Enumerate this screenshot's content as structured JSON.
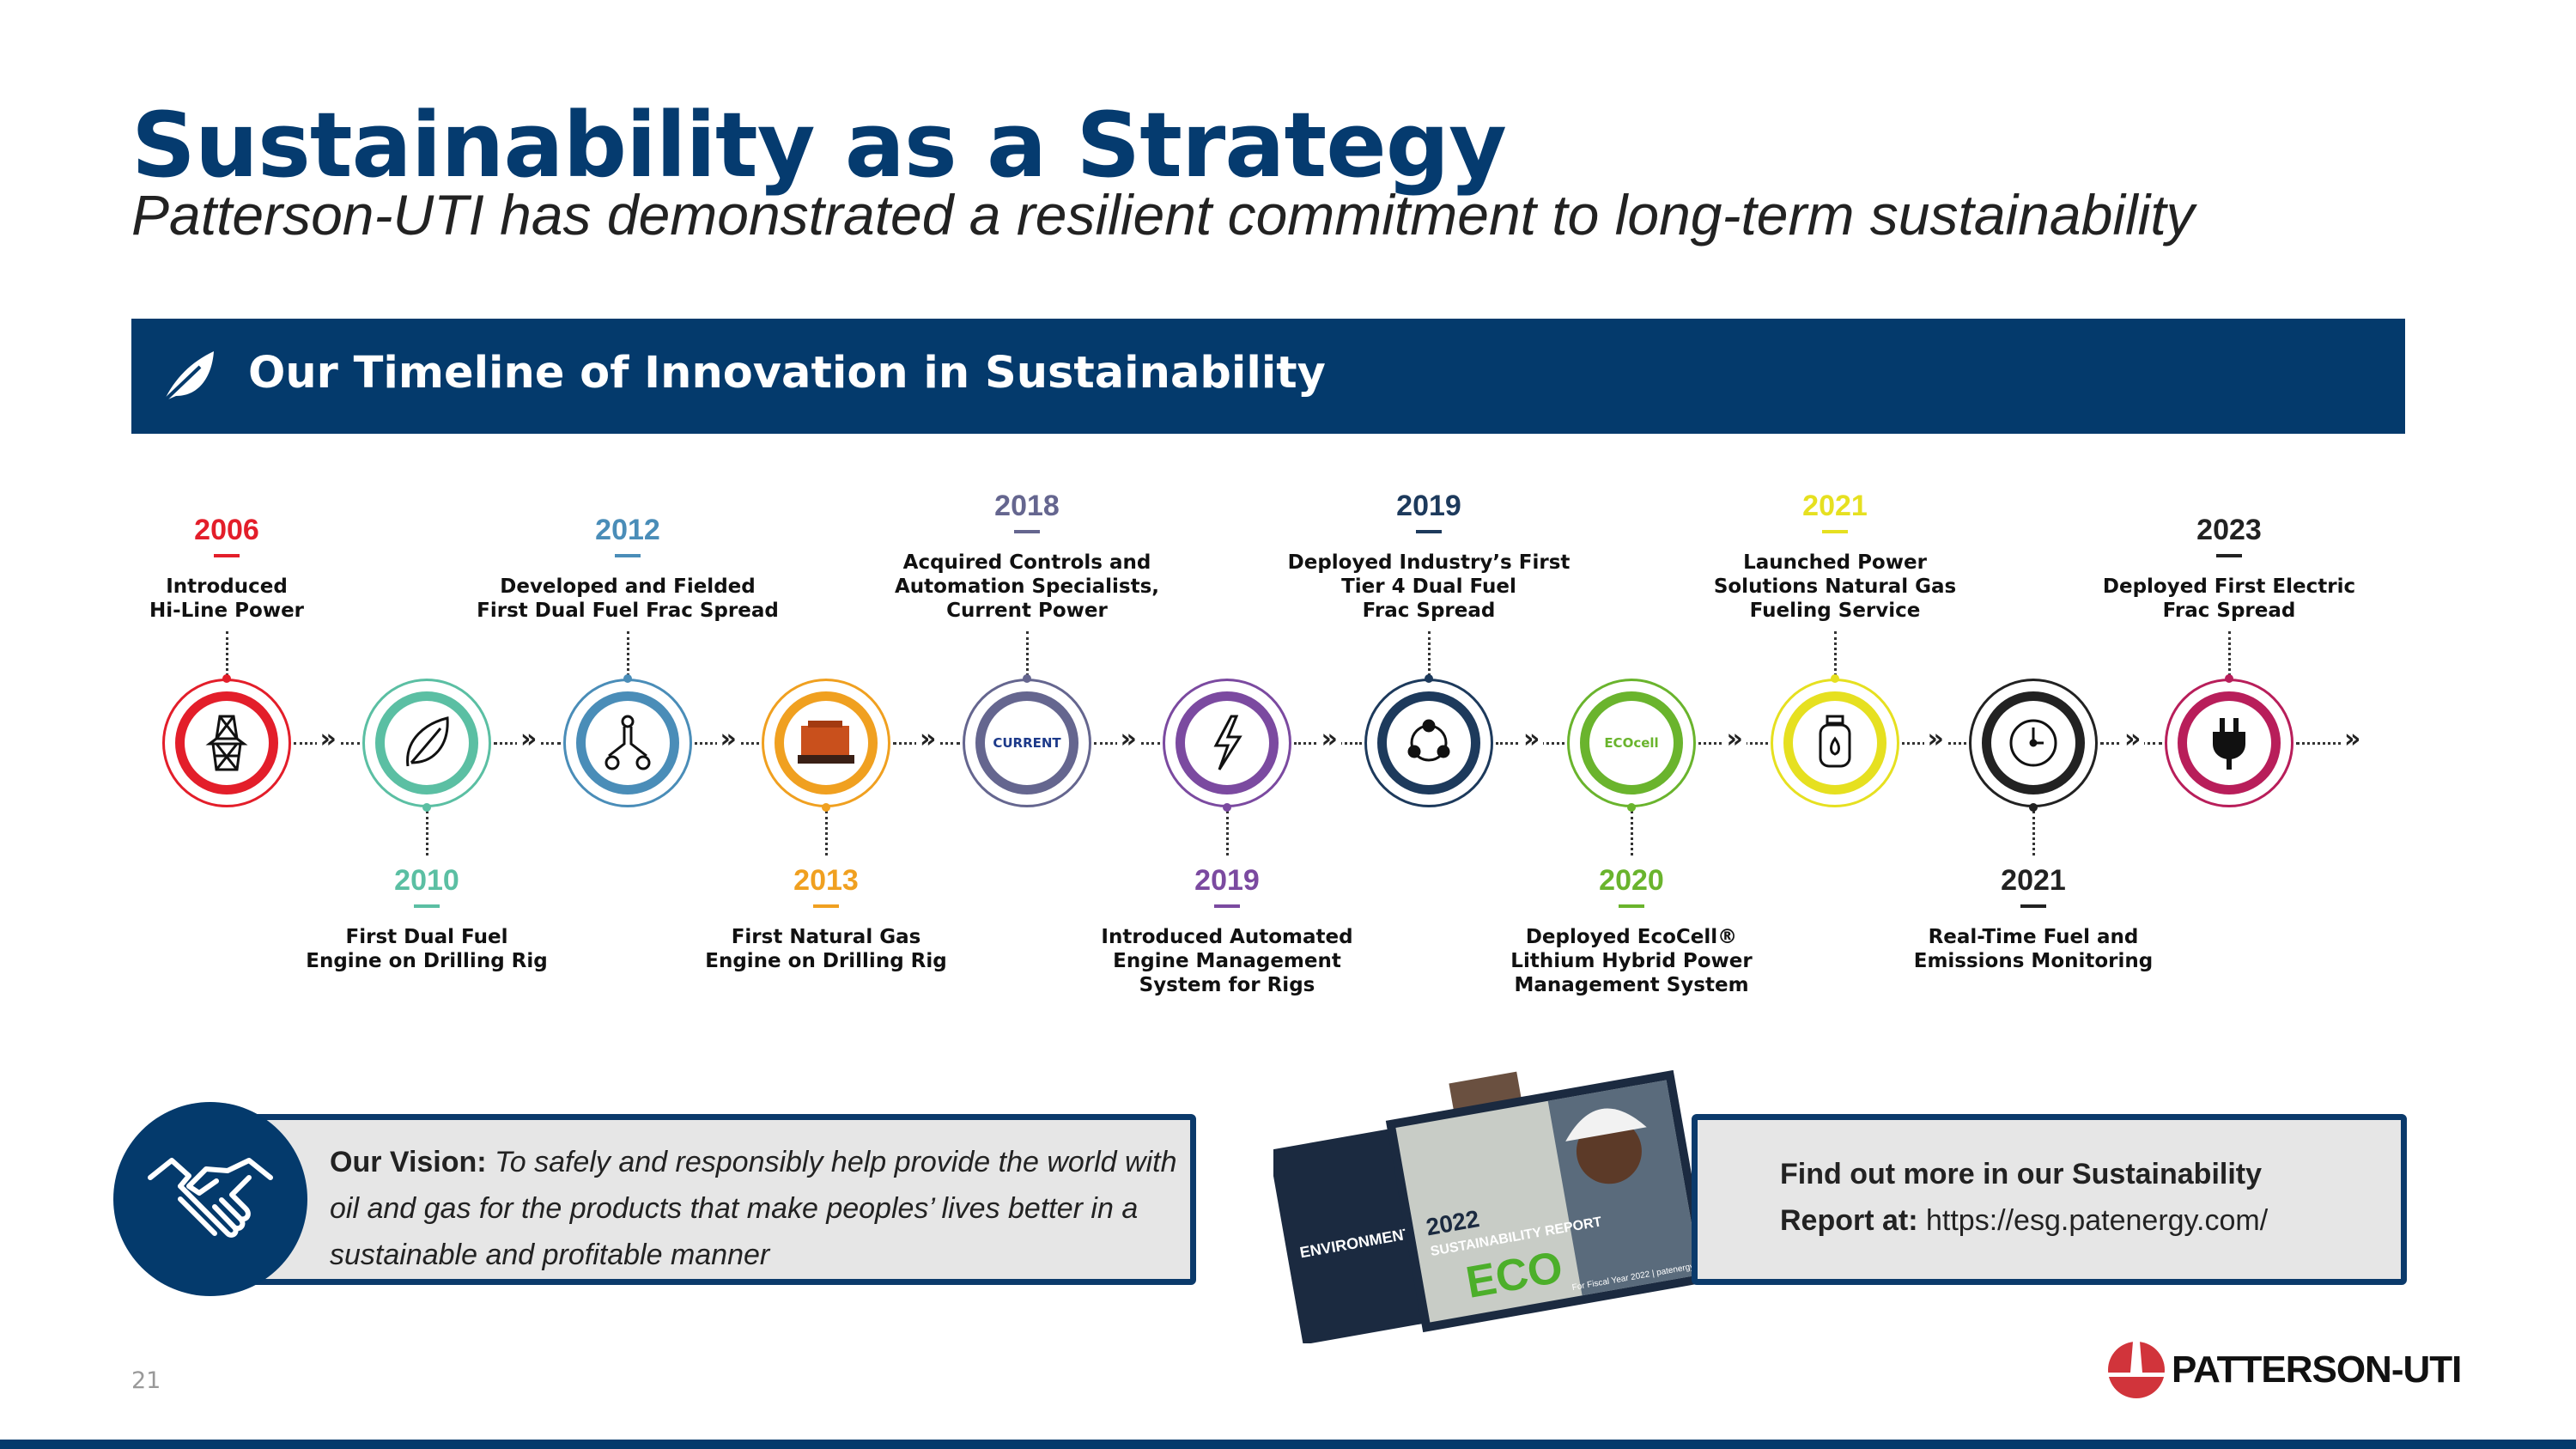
{
  "header": {
    "title": "Sustainability as a Strategy",
    "subtitle": "Patterson-UTI has demonstrated a resilient commitment to long-term sustainability"
  },
  "banner": {
    "icon": "leaf-icon",
    "title": "Our Timeline of Innovation in Sustainability"
  },
  "timeline": [
    {
      "year": "2006",
      "text": "Introduced\nHi-Line Power",
      "color": "#e31e2a",
      "icon": "power-tower-icon",
      "side": "top"
    },
    {
      "year": "2010",
      "text": "First Dual Fuel\nEngine on Drilling Rig",
      "color": "#5bbfa3",
      "icon": "leaf-icon",
      "side": "bottom"
    },
    {
      "year": "2012",
      "text": "Developed and Fielded\nFirst Dual Fuel Frac Spread",
      "color": "#4a8db8",
      "icon": "fork-connector-icon",
      "side": "top"
    },
    {
      "year": "2013",
      "text": "First Natural Gas\nEngine on Drilling Rig",
      "color": "#f0a020",
      "icon": "engine-icon",
      "side": "bottom"
    },
    {
      "year": "2018",
      "text": "Acquired Controls and\nAutomation Specialists,\nCurrent Power",
      "color": "#65668f",
      "icon": "current-power-logo-icon",
      "side": "top",
      "icon_text": "CURRENT"
    },
    {
      "year": "2019",
      "text": "Introduced Automated\nEngine Management\nSystem for Rigs",
      "color": "#7b4aa0",
      "icon": "lightning-icon",
      "side": "bottom"
    },
    {
      "year": "2019",
      "text": "Deployed Industry’s First\nTier 4 Dual Fuel\nFrac Spread",
      "color": "#1d3a5c",
      "icon": "cycle-nodes-icon",
      "side": "top"
    },
    {
      "year": "2020",
      "text": "Deployed EcoCell®\nLithium Hybrid Power\nManagement System",
      "color": "#6ab42d",
      "icon": "ecocell-logo-icon",
      "side": "bottom",
      "icon_text": "ECOcell"
    },
    {
      "year": "2021",
      "text": "Launched Power\nSolutions Natural Gas\nFueling Service",
      "color": "#e6e020",
      "icon": "gas-tank-icon",
      "side": "top"
    },
    {
      "year": "2021",
      "text": "Real-Time Fuel and\nEmissions Monitoring",
      "color": "#222222",
      "icon": "clock-icon",
      "side": "bottom"
    },
    {
      "year": "2023",
      "text": "Deployed First Electric\nFrac Spread",
      "color": "#b81e5a",
      "icon": "plug-icon",
      "side": "top",
      "year_color": "#222222"
    }
  ],
  "vision": {
    "icon": "handshake-icon",
    "label": "Our Vision:",
    "text": " To safely and responsibly help provide the world with oil and gas for the products that make peoples’ lives better in a sustainable and profitable manner"
  },
  "report": {
    "line1": "Find out more in our Sustainability",
    "label": "Report at:",
    "url": " https://esg.patenergy.com/",
    "cover_title_year": "2022",
    "cover_title": "SUSTAINABILITY REPORT",
    "back_title": "ENVIRONMENTA",
    "cover_footer": "For Fiscal Year 2022 | patenergy.com"
  },
  "footer": {
    "page_number": "21",
    "logo_text": "PATTERSON-UTI",
    "accent": "#043a6c"
  }
}
